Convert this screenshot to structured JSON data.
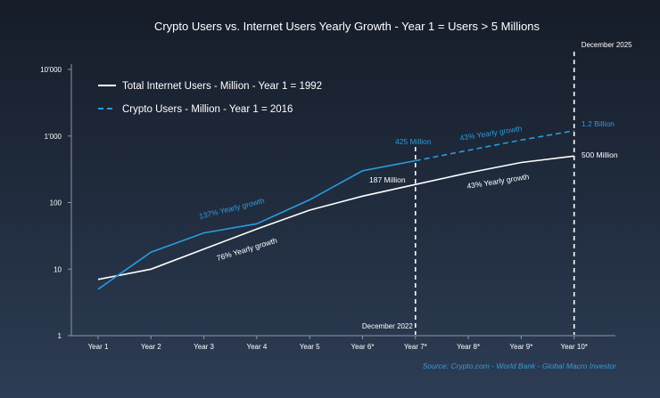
{
  "chart_data": {
    "type": "line",
    "title": "Crypto Users vs. Internet Users Yearly Growth - Year 1 = Users > 5 Millions",
    "categories": [
      "Year 1",
      "Year 2",
      "Year 3",
      "Year 4",
      "Year 5",
      "Year 6*",
      "Year 7*",
      "Year 8*",
      "Year 9*",
      "Year 10*"
    ],
    "y_scale": "log",
    "ylim": [
      1,
      10000
    ],
    "y_ticks": [
      "1",
      "10",
      "100",
      "1'000",
      "10'000"
    ],
    "series": [
      {
        "name": "Total Internet Users - Million - Year 1 = 1992",
        "color": "#ffffff",
        "style": "solid",
        "values": [
          7,
          10,
          20,
          40,
          77,
          125,
          187,
          280,
          400,
          500
        ]
      },
      {
        "name": "Crypto Users - Million - Year 1 = 2016",
        "color": "#2b9be0",
        "style": "solid-then-dashed",
        "dashed_from_index": 6,
        "values": [
          5,
          18,
          35,
          48,
          110,
          300,
          425,
          610,
          870,
          1200
        ]
      }
    ],
    "reference_lines": [
      {
        "label": "December 2022",
        "at_category": "Year 7*"
      },
      {
        "label": "December 2025",
        "at_category": "Year 10*"
      }
    ],
    "annotations": [
      {
        "text": "137% Yearly growth",
        "color": "#2b9be0"
      },
      {
        "text": "76% Yearly growth",
        "color": "#ffffff"
      },
      {
        "text": "425 Million",
        "color": "#2b9be0"
      },
      {
        "text": "187 Million",
        "color": "#ffffff"
      },
      {
        "text": "43% Yearly growth",
        "color": "#2b9be0"
      },
      {
        "text": "43% Yearly growth",
        "color": "#ffffff"
      },
      {
        "text": "1.2 Billion",
        "color": "#2b9be0"
      },
      {
        "text": "500 Million",
        "color": "#ffffff"
      }
    ],
    "source": "Source: Crypto.com - World Bank - Global Macro Investor"
  }
}
